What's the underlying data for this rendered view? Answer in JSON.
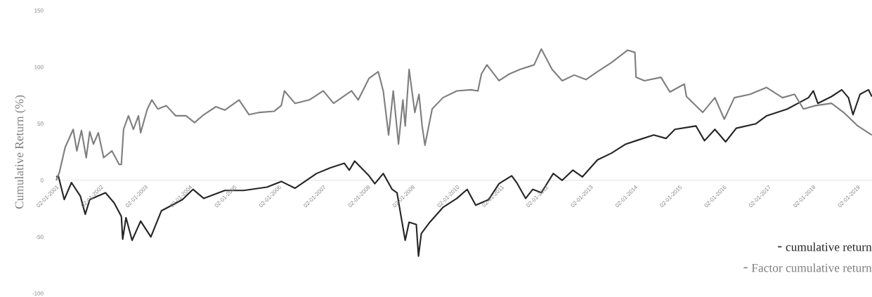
{
  "chart_data": {
    "type": "line",
    "ylabel": "Cumulative Return (%)",
    "series": [
      {
        "name": "cumulative return",
        "color": "#262626",
        "x": [
          "2001-01-02",
          "2001-01-19",
          "2001-03-09",
          "2001-05-07",
          "2001-07-19",
          "2001-08-28",
          "2001-10-04",
          "2002-02-10",
          "2002-04-22",
          "2002-06-20",
          "2002-07-01",
          "2002-07-28",
          "2002-09-16",
          "2002-11-25",
          "2003-02-17",
          "2003-05-14",
          "2003-11-03",
          "2004-01-28",
          "2004-04-26",
          "2004-10-15",
          "2005-03-20",
          "2005-09-27",
          "2006-01-22",
          "2006-05-14",
          "2006-11-07",
          "2007-02-28",
          "2007-06-23",
          "2007-08-03",
          "2007-09-16",
          "2008-01-11",
          "2008-02-28",
          "2008-05-07",
          "2008-07-19",
          "2008-08-28",
          "2008-09-27",
          "2008-11-03",
          "2008-12-05",
          "2009-02-03",
          "2009-02-21",
          "2009-03-16",
          "2009-05-25",
          "2009-09-09",
          "2010-01-01",
          "2010-03-27",
          "2010-06-05",
          "2010-09-20",
          "2010-12-13",
          "2011-03-27",
          "2011-05-07",
          "2011-07-19",
          "2011-09-16",
          "2011-11-25",
          "2012-03-02",
          "2012-05-14",
          "2012-08-10",
          "2012-10-26",
          "2013-02-28",
          "2013-06-23",
          "2013-10-19",
          "2014-01-11",
          "2014-06-05",
          "2014-09-13",
          "2014-11-25",
          "2015-05-17",
          "2015-07-26",
          "2015-10-19",
          "2016-01-15",
          "2016-04-11",
          "2016-09-20",
          "2016-12-16",
          "2017-06-05",
          "2017-11-25",
          "2018-01-04",
          "2018-02-10",
          "2018-06-02",
          "2018-08-25",
          "2018-10-19",
          "2018-11-25",
          "2019-01-22",
          "2019-04-01",
          "2019-04-29"
        ],
        "values": [
          3,
          4,
          -17,
          -2,
          -14,
          -30,
          -17,
          -11,
          -20,
          -32,
          -52,
          -33,
          -53,
          -36,
          -50,
          -27,
          -17,
          -8,
          -16,
          -9,
          -9,
          -6,
          -1,
          -7,
          6,
          11,
          15,
          9,
          17,
          4,
          -3,
          6,
          -8,
          -11,
          -30,
          -53,
          -37,
          -39,
          -67,
          -47,
          -37,
          -24,
          -16,
          -8,
          -22,
          -17,
          -3,
          4,
          -2,
          -16,
          -8,
          -11,
          6,
          0,
          9,
          3,
          18,
          24,
          32,
          35,
          40,
          37,
          45,
          48,
          35,
          45,
          34,
          46,
          50,
          57,
          63,
          73,
          79,
          68,
          74,
          80,
          73,
          58,
          76,
          80,
          74
        ]
      },
      {
        "name": "Factor cumulative return",
        "color": "#7f7f7f",
        "x": [
          "2001-01-02",
          "2001-01-28",
          "2001-03-16",
          "2001-05-21",
          "2001-06-20",
          "2001-07-28",
          "2001-09-05",
          "2001-10-04",
          "2001-11-03",
          "2001-12-13",
          "2002-01-26",
          "2002-04-04",
          "2002-06-02",
          "2002-06-20",
          "2002-07-08",
          "2002-08-17",
          "2002-09-27",
          "2002-11-07",
          "2002-11-25",
          "2003-01-19",
          "2003-02-25",
          "2003-04-15",
          "2003-06-23",
          "2003-09-09",
          "2003-12-02",
          "2004-02-10",
          "2004-04-26",
          "2004-08-03",
          "2004-10-15",
          "2005-02-10",
          "2005-05-03",
          "2005-07-28",
          "2005-11-25",
          "2006-01-22",
          "2006-02-17",
          "2006-05-14",
          "2006-09-09",
          "2007-01-01",
          "2007-03-27",
          "2007-08-21",
          "2007-10-15",
          "2008-01-11",
          "2008-03-27",
          "2008-05-07",
          "2008-06-20",
          "2008-07-28",
          "2008-09-09",
          "2008-10-15",
          "2008-11-03",
          "2008-12-05",
          "2009-01-22",
          "2009-02-25",
          "2009-03-23",
          "2009-04-15",
          "2009-06-13",
          "2009-09-09",
          "2010-01-01",
          "2010-04-26",
          "2010-06-23",
          "2010-07-22",
          "2010-09-05",
          "2010-12-13",
          "2011-03-09",
          "2011-06-05",
          "2011-09-27",
          "2011-11-25",
          "2012-02-21",
          "2012-05-14",
          "2012-08-21",
          "2012-11-25",
          "2013-02-28",
          "2013-06-23",
          "2013-11-03",
          "2014-01-01",
          "2014-01-11",
          "2014-03-20",
          "2014-08-03",
          "2014-10-15",
          "2015-02-10",
          "2015-02-28",
          "2015-07-11",
          "2015-10-19",
          "2016-01-04",
          "2016-03-27",
          "2016-08-03",
          "2016-12-16",
          "2017-04-26",
          "2017-08-03",
          "2017-10-15",
          "2018-01-22",
          "2018-06-02",
          "2018-09-09",
          "2019-01-04",
          "2019-04-29"
        ],
        "values": [
          0,
          7,
          29,
          45,
          26,
          44,
          20,
          43,
          32,
          42,
          20,
          26,
          14,
          14,
          45,
          57,
          45,
          57,
          42,
          63,
          71,
          63,
          66,
          57,
          57,
          51,
          58,
          65,
          62,
          71,
          58,
          60,
          61,
          66,
          79,
          68,
          71,
          79,
          68,
          79,
          71,
          90,
          96,
          79,
          40,
          79,
          32,
          71,
          48,
          98,
          60,
          76,
          48,
          31,
          63,
          73,
          79,
          80,
          79,
          94,
          102,
          88,
          94,
          98,
          102,
          116,
          98,
          88,
          93,
          89,
          96,
          104,
          115,
          113,
          91,
          88,
          91,
          78,
          85,
          74,
          60,
          73,
          54,
          73,
          76,
          82,
          73,
          76,
          63,
          66,
          68,
          60,
          48,
          40
        ]
      }
    ],
    "xlim": [
      "2001-01-02",
      "2019-04-30"
    ],
    "xticks": [
      {
        "value": "2001-01-02",
        "label": "02-01-2001"
      },
      {
        "value": "2002-01-02",
        "label": "02-01-2002"
      },
      {
        "value": "2003-01-02",
        "label": "02-01-2003"
      },
      {
        "value": "2004-01-02",
        "label": "02-01-2004"
      },
      {
        "value": "2005-01-02",
        "label": "02-01-2005"
      },
      {
        "value": "2006-01-02",
        "label": "02-01-2006"
      },
      {
        "value": "2007-01-02",
        "label": "02-01-2007"
      },
      {
        "value": "2008-01-02",
        "label": "02-01-2008"
      },
      {
        "value": "2009-01-02",
        "label": "02-01-2009"
      },
      {
        "value": "2010-01-02",
        "label": "02-01-2010"
      },
      {
        "value": "2011-01-02",
        "label": "02-01-2011"
      },
      {
        "value": "2012-01-02",
        "label": "02-01-2012"
      },
      {
        "value": "2013-01-02",
        "label": "02-01-2013"
      },
      {
        "value": "2014-01-02",
        "label": "02-01-2014"
      },
      {
        "value": "2015-01-02",
        "label": "02-01-2015"
      },
      {
        "value": "2016-01-02",
        "label": "02-01-2016"
      },
      {
        "value": "2017-01-02",
        "label": "02-01-2017"
      },
      {
        "value": "2018-01-02",
        "label": "02-01-2018"
      },
      {
        "value": "2019-01-02",
        "label": "02-01-2019"
      }
    ],
    "ylim": [
      -100,
      150
    ],
    "yticks": [
      -100,
      -50,
      0,
      50,
      100,
      150
    ],
    "grid": false,
    "legend": "bottom right",
    "marker": "none",
    "line_style": "solid"
  }
}
